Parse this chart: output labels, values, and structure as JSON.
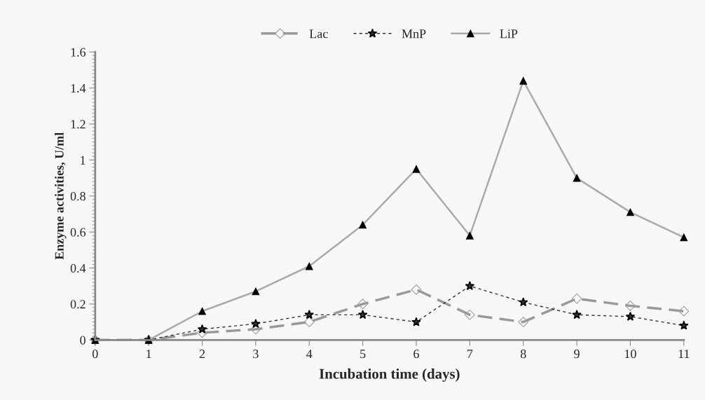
{
  "chart_data": {
    "type": "line",
    "xlabel": "Incubation time (days)",
    "ylabel": "Enzyme activities, U/ml",
    "x": [
      0,
      1,
      2,
      3,
      4,
      5,
      6,
      7,
      8,
      9,
      10,
      11
    ],
    "xlim": [
      0,
      11
    ],
    "xticks": [
      0,
      1,
      2,
      3,
      4,
      5,
      6,
      7,
      8,
      9,
      10,
      11
    ],
    "ylim": [
      0,
      1.6
    ],
    "yticks": [
      0,
      0.2,
      0.4,
      0.6,
      0.8,
      1,
      1.2,
      1.4,
      1.6
    ],
    "grid": false,
    "legend": "top",
    "series": [
      {
        "name": "Lac",
        "color": "#999999",
        "marker": "diamond",
        "line_style": "dashed",
        "values": [
          0,
          0,
          0.04,
          0.06,
          0.1,
          0.2,
          0.28,
          0.14,
          0.1,
          0.23,
          0.19,
          0.16
        ]
      },
      {
        "name": "MnP",
        "color": "#333333",
        "marker": "star",
        "line_style": "dotted",
        "values": [
          0,
          0,
          0.06,
          0.09,
          0.14,
          0.14,
          0.1,
          0.3,
          0.21,
          0.14,
          0.13,
          0.08
        ]
      },
      {
        "name": "LiP",
        "color": "#aaaaaa",
        "marker": "triangle",
        "line_style": "solid",
        "values": [
          0,
          0,
          0.16,
          0.27,
          0.41,
          0.64,
          0.95,
          0.58,
          1.44,
          0.9,
          0.71,
          0.57
        ]
      }
    ]
  }
}
